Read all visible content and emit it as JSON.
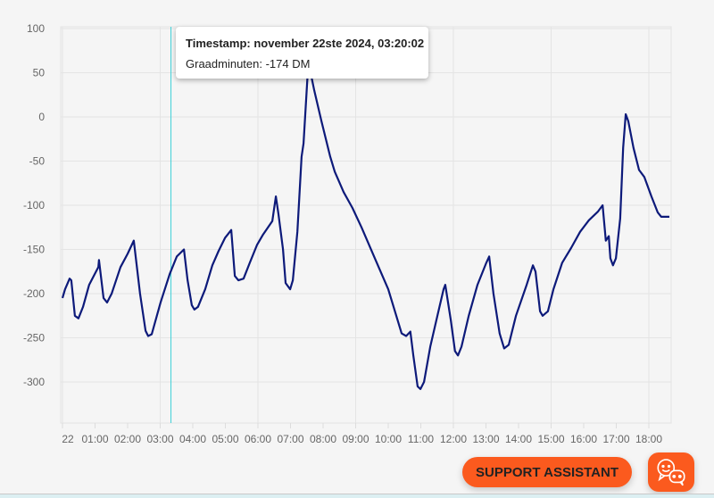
{
  "chart_data": {
    "type": "line",
    "title": "",
    "xlabel": "",
    "ylabel": "",
    "ylim": [
      -350,
      100
    ],
    "xlim_hours": [
      0,
      18.7
    ],
    "y_ticks": [
      "100",
      "50",
      "0",
      "-50",
      "-100",
      "-150",
      "-200",
      "-250",
      "-300"
    ],
    "y_tick_values": [
      100,
      50,
      0,
      -50,
      -100,
      -150,
      -200,
      -250,
      -300
    ],
    "x_ticks": [
      "22",
      "01:00",
      "02:00",
      "03:00",
      "04:00",
      "05:00",
      "06:00",
      "07:00",
      "08:00",
      "09:00",
      "10:00",
      "11:00",
      "12:00",
      "13:00",
      "14:00",
      "15:00",
      "16:00",
      "17:00",
      "18:00"
    ],
    "grid": true,
    "series": [
      {
        "name": "Graadminuten",
        "color": "#0d1a7a",
        "points": [
          [
            0.0,
            -205
          ],
          [
            0.08,
            -195
          ],
          [
            0.22,
            -183
          ],
          [
            0.27,
            -185
          ],
          [
            0.38,
            -225
          ],
          [
            0.49,
            -228
          ],
          [
            0.63,
            -215
          ],
          [
            0.82,
            -190
          ],
          [
            1.1,
            -170
          ],
          [
            1.12,
            -162
          ],
          [
            1.26,
            -205
          ],
          [
            1.37,
            -210
          ],
          [
            1.51,
            -200
          ],
          [
            1.78,
            -170
          ],
          [
            2.0,
            -155
          ],
          [
            2.19,
            -140
          ],
          [
            2.38,
            -200
          ],
          [
            2.55,
            -242
          ],
          [
            2.63,
            -248
          ],
          [
            2.74,
            -246
          ],
          [
            3.01,
            -210
          ],
          [
            3.29,
            -178
          ],
          [
            3.51,
            -158
          ],
          [
            3.73,
            -150
          ],
          [
            3.84,
            -185
          ],
          [
            3.97,
            -213
          ],
          [
            4.05,
            -218
          ],
          [
            4.16,
            -215
          ],
          [
            4.38,
            -195
          ],
          [
            4.6,
            -168
          ],
          [
            4.79,
            -152
          ],
          [
            4.99,
            -137
          ],
          [
            5.18,
            -128
          ],
          [
            5.29,
            -180
          ],
          [
            5.4,
            -185
          ],
          [
            5.56,
            -183
          ],
          [
            5.75,
            -165
          ],
          [
            5.97,
            -145
          ],
          [
            6.16,
            -133
          ],
          [
            6.44,
            -118
          ],
          [
            6.55,
            -90
          ],
          [
            6.63,
            -110
          ],
          [
            6.77,
            -150
          ],
          [
            6.85,
            -188
          ],
          [
            6.99,
            -195
          ],
          [
            7.07,
            -185
          ],
          [
            7.21,
            -130
          ],
          [
            7.34,
            -45
          ],
          [
            7.4,
            -30
          ],
          [
            7.53,
            50
          ],
          [
            7.59,
            55
          ],
          [
            7.73,
            30
          ],
          [
            7.95,
            -5
          ],
          [
            8.22,
            -45
          ],
          [
            8.36,
            -62
          ],
          [
            8.63,
            -85
          ],
          [
            8.9,
            -103
          ],
          [
            9.18,
            -125
          ],
          [
            9.59,
            -160
          ],
          [
            10.0,
            -195
          ],
          [
            10.41,
            -245
          ],
          [
            10.55,
            -248
          ],
          [
            10.68,
            -243
          ],
          [
            10.77,
            -270
          ],
          [
            10.9,
            -305
          ],
          [
            10.99,
            -308
          ],
          [
            11.1,
            -300
          ],
          [
            11.29,
            -260
          ],
          [
            11.51,
            -225
          ],
          [
            11.7,
            -195
          ],
          [
            11.75,
            -190
          ],
          [
            11.92,
            -230
          ],
          [
            12.05,
            -265
          ],
          [
            12.14,
            -270
          ],
          [
            12.25,
            -260
          ],
          [
            12.47,
            -225
          ],
          [
            12.74,
            -190
          ],
          [
            13.01,
            -165
          ],
          [
            13.1,
            -158
          ],
          [
            13.23,
            -200
          ],
          [
            13.42,
            -245
          ],
          [
            13.56,
            -262
          ],
          [
            13.7,
            -258
          ],
          [
            13.92,
            -225
          ],
          [
            14.25,
            -190
          ],
          [
            14.44,
            -168
          ],
          [
            14.52,
            -175
          ],
          [
            14.66,
            -220
          ],
          [
            14.74,
            -225
          ],
          [
            14.9,
            -220
          ],
          [
            15.07,
            -195
          ],
          [
            15.34,
            -165
          ],
          [
            15.62,
            -148
          ],
          [
            15.89,
            -130
          ],
          [
            16.16,
            -117
          ],
          [
            16.44,
            -107
          ],
          [
            16.58,
            -100
          ],
          [
            16.68,
            -140
          ],
          [
            16.77,
            -135
          ],
          [
            16.82,
            -160
          ],
          [
            16.9,
            -168
          ],
          [
            16.99,
            -160
          ],
          [
            17.12,
            -115
          ],
          [
            17.21,
            -35
          ],
          [
            17.29,
            3
          ],
          [
            17.37,
            -5
          ],
          [
            17.53,
            -35
          ],
          [
            17.7,
            -60
          ],
          [
            17.86,
            -68
          ],
          [
            18.08,
            -90
          ],
          [
            18.27,
            -108
          ],
          [
            18.38,
            -113
          ],
          [
            18.63,
            -113
          ]
        ]
      }
    ],
    "cursor_hour": 3.33,
    "tooltip": {
      "line1": "Timestamp: november 22ste 2024, 03:20:02",
      "line2": "Graadminuten: -174 DM"
    }
  },
  "support": {
    "label": "SUPPORT ASSISTANT",
    "icon": "chat-bot-icon",
    "color": "#fb5a1e"
  }
}
